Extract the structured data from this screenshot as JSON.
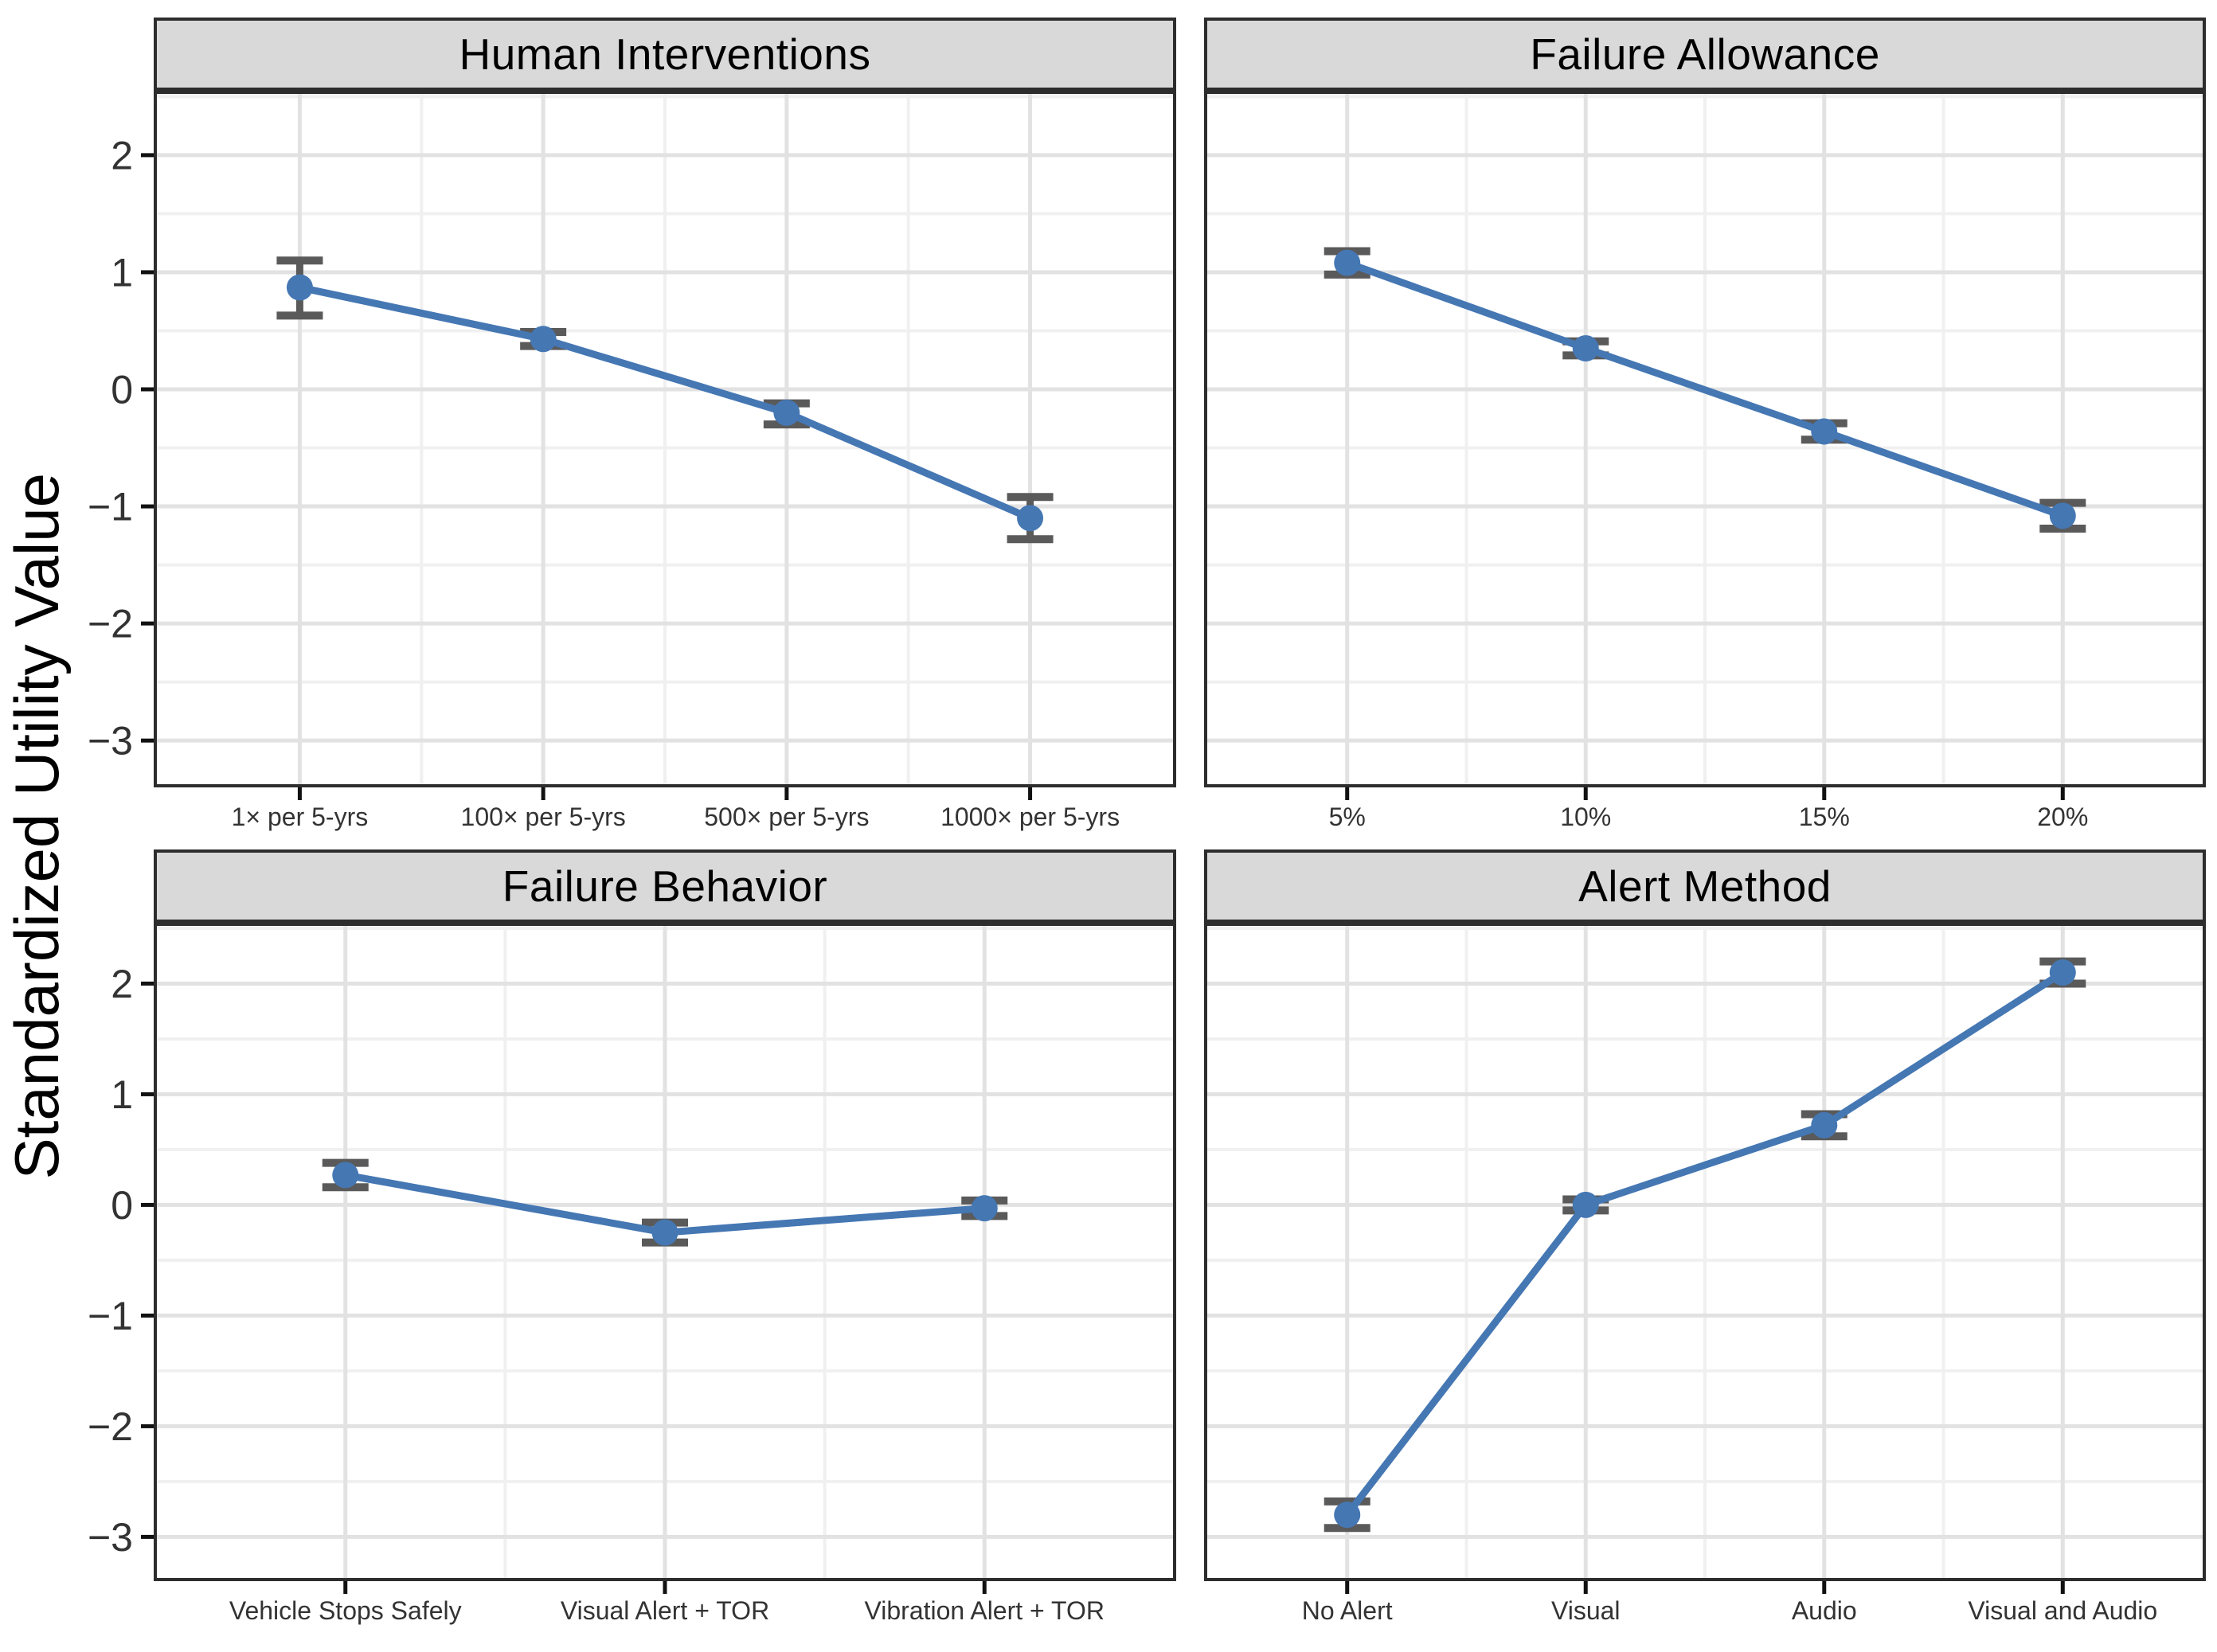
{
  "figure": {
    "ylabel": "Standardized Utility Value",
    "yticks": [
      -3,
      -2,
      -1,
      0,
      1,
      2
    ],
    "ytick_labels": [
      "−3",
      "−2",
      "−1",
      "0",
      "1",
      "2"
    ],
    "colors": {
      "line": "#4577b3",
      "point": "#4577b3",
      "error_bar": "#5a5a5a",
      "strip_bg": "#d9d9d9",
      "panel_border": "#2d2d2d",
      "grid_major": "#e2e2e2",
      "grid_minor": "#f0f0f0",
      "tick_mark": "#111111",
      "tick_label": "#333333"
    }
  },
  "chart_data": [
    {
      "type": "line",
      "title": "Human Interventions",
      "xlabel": "",
      "ylabel": "Standardized Utility Value",
      "ylim": [
        -3.4,
        2.55
      ],
      "grid": true,
      "categories": [
        "1× per 5-yrs",
        "100× per 5-yrs",
        "500× per 5-yrs",
        "1000× per 5-yrs"
      ],
      "values": [
        0.87,
        0.43,
        -0.2,
        -1.1
      ],
      "error_low": [
        0.63,
        0.37,
        -0.3,
        -1.28
      ],
      "error_high": [
        1.1,
        0.49,
        -0.12,
        -0.92
      ]
    },
    {
      "type": "line",
      "title": "Failure Allowance",
      "xlabel": "",
      "ylabel": "Standardized Utility Value",
      "ylim": [
        -3.4,
        2.55
      ],
      "grid": true,
      "categories": [
        "5%",
        "10%",
        "15%",
        "20%"
      ],
      "values": [
        1.08,
        0.35,
        -0.36,
        -1.08
      ],
      "error_low": [
        0.98,
        0.29,
        -0.43,
        -1.19
      ],
      "error_high": [
        1.18,
        0.41,
        -0.29,
        -0.97
      ]
    },
    {
      "type": "line",
      "title": "Failure Behavior",
      "xlabel": "",
      "ylabel": "Standardized Utility Value",
      "ylim": [
        -3.4,
        2.55
      ],
      "grid": true,
      "categories": [
        "Vehicle Stops Safely",
        "Visual Alert + TOR",
        "Vibration Alert + TOR"
      ],
      "values": [
        0.27,
        -0.25,
        -0.03
      ],
      "error_low": [
        0.16,
        -0.34,
        -0.1
      ],
      "error_high": [
        0.38,
        -0.16,
        0.04
      ]
    },
    {
      "type": "line",
      "title": "Alert Method",
      "xlabel": "",
      "ylabel": "Standardized Utility Value",
      "ylim": [
        -3.4,
        2.55
      ],
      "grid": true,
      "categories": [
        "No Alert",
        "Visual",
        "Audio",
        "Visual and Audio"
      ],
      "values": [
        -2.8,
        0.0,
        0.72,
        2.1
      ],
      "error_low": [
        -2.92,
        -0.05,
        0.62,
        2.0
      ],
      "error_high": [
        -2.68,
        0.05,
        0.82,
        2.2
      ]
    }
  ]
}
